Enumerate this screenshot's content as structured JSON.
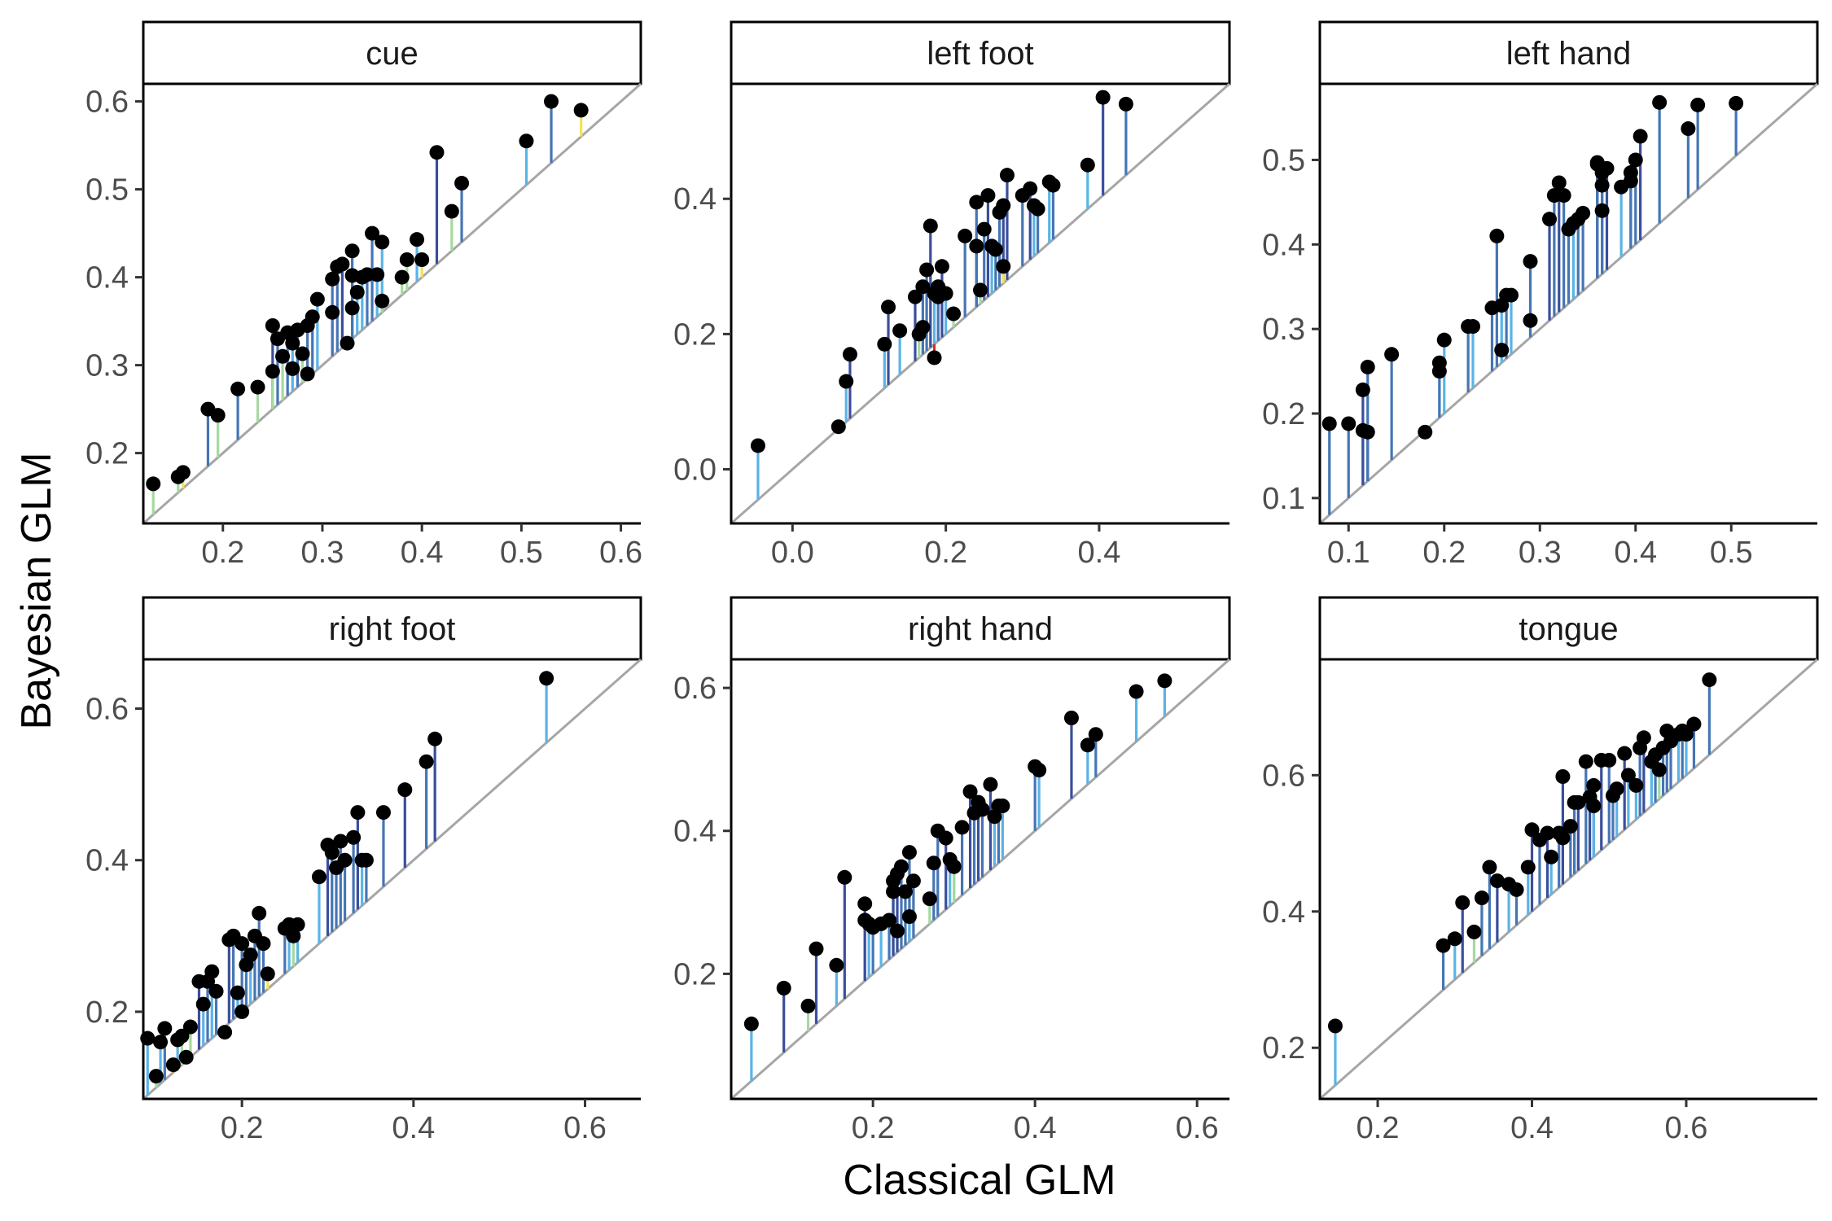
{
  "figure": {
    "xlabel": "Classical GLM",
    "ylabel": "Bayesian GLM"
  },
  "colors": {
    "point": "#000000",
    "identity_line": "#a6a6a6",
    "frame": "#000000",
    "strip_fill": "#ffffff",
    "segment_palette": [
      "#d7301f",
      "#f0a030",
      "#f2e25a",
      "#a6d9a0",
      "#5ab4e6",
      "#4575b4",
      "#3a4e9c"
    ]
  },
  "chart_data": [
    {
      "type": "scatter",
      "title": "cue",
      "xlim": [
        0.12,
        0.62
      ],
      "ylim": [
        0.12,
        0.62
      ],
      "xticks": [
        "0.2",
        "0.3",
        "0.4",
        "0.5",
        "0.6"
      ],
      "xtick_values": [
        0.2,
        0.3,
        0.4,
        0.5,
        0.6
      ],
      "yticks": [
        "0.2",
        "0.3",
        "0.4",
        "0.5",
        "0.6"
      ],
      "ytick_values": [
        0.2,
        0.3,
        0.4,
        0.5,
        0.6
      ],
      "x": [
        0.13,
        0.155,
        0.16,
        0.185,
        0.195,
        0.215,
        0.235,
        0.25,
        0.25,
        0.255,
        0.26,
        0.265,
        0.27,
        0.275,
        0.28,
        0.285,
        0.285,
        0.29,
        0.295,
        0.31,
        0.315,
        0.32,
        0.325,
        0.33,
        0.33,
        0.335,
        0.34,
        0.345,
        0.35,
        0.355,
        0.36,
        0.38,
        0.385,
        0.395,
        0.4,
        0.415,
        0.43,
        0.44,
        0.505,
        0.53,
        0.56,
        0.36,
        0.27,
        0.31,
        0.33
      ],
      "y": [
        0.165,
        0.173,
        0.178,
        0.25,
        0.243,
        0.273,
        0.275,
        0.345,
        0.293,
        0.33,
        0.31,
        0.337,
        0.296,
        0.34,
        0.313,
        0.345,
        0.29,
        0.355,
        0.375,
        0.36,
        0.412,
        0.415,
        0.325,
        0.402,
        0.365,
        0.383,
        0.4,
        0.403,
        0.45,
        0.403,
        0.44,
        0.4,
        0.42,
        0.443,
        0.42,
        0.542,
        0.475,
        0.507,
        0.555,
        0.6,
        0.59,
        0.373,
        0.325,
        0.398,
        0.43
      ]
    },
    {
      "type": "scatter",
      "title": "left foot",
      "xlim": [
        -0.08,
        0.57
      ],
      "ylim": [
        -0.08,
        0.57
      ],
      "xticks": [
        "0.0",
        "0.2",
        "0.4"
      ],
      "xtick_values": [
        0.0,
        0.2,
        0.4
      ],
      "yticks": [
        "0.0",
        "0.2",
        "0.4"
      ],
      "ytick_values": [
        0.0,
        0.2,
        0.4
      ],
      "x": [
        -0.045,
        0.06,
        0.07,
        0.075,
        0.12,
        0.125,
        0.14,
        0.16,
        0.165,
        0.17,
        0.175,
        0.18,
        0.185,
        0.185,
        0.19,
        0.195,
        0.2,
        0.21,
        0.225,
        0.24,
        0.24,
        0.245,
        0.25,
        0.255,
        0.26,
        0.265,
        0.27,
        0.275,
        0.275,
        0.28,
        0.3,
        0.31,
        0.315,
        0.32,
        0.335,
        0.34,
        0.385,
        0.405,
        0.435,
        0.19,
        0.17
      ],
      "y": [
        0.035,
        0.063,
        0.13,
        0.17,
        0.185,
        0.24,
        0.205,
        0.255,
        0.2,
        0.21,
        0.295,
        0.36,
        0.26,
        0.165,
        0.27,
        0.3,
        0.26,
        0.23,
        0.345,
        0.33,
        0.395,
        0.265,
        0.355,
        0.405,
        0.33,
        0.325,
        0.38,
        0.39,
        0.3,
        0.435,
        0.405,
        0.415,
        0.39,
        0.385,
        0.425,
        0.42,
        0.45,
        0.55,
        0.54,
        0.255,
        0.27
      ]
    },
    {
      "type": "scatter",
      "title": "left hand",
      "xlim": [
        0.07,
        0.59
      ],
      "ylim": [
        0.07,
        0.59
      ],
      "xticks": [
        "0.1",
        "0.2",
        "0.3",
        "0.4",
        "0.5"
      ],
      "xtick_values": [
        0.1,
        0.2,
        0.3,
        0.4,
        0.5
      ],
      "yticks": [
        "0.1",
        "0.2",
        "0.3",
        "0.4",
        "0.5"
      ],
      "ytick_values": [
        0.1,
        0.2,
        0.3,
        0.4,
        0.5
      ],
      "x": [
        0.08,
        0.1,
        0.115,
        0.115,
        0.12,
        0.12,
        0.145,
        0.18,
        0.195,
        0.195,
        0.2,
        0.225,
        0.23,
        0.25,
        0.255,
        0.26,
        0.26,
        0.265,
        0.27,
        0.29,
        0.29,
        0.31,
        0.315,
        0.32,
        0.325,
        0.33,
        0.335,
        0.34,
        0.345,
        0.36,
        0.36,
        0.365,
        0.365,
        0.37,
        0.385,
        0.395,
        0.4,
        0.405,
        0.425,
        0.455,
        0.465,
        0.505,
        0.365,
        0.395
      ],
      "y": [
        0.188,
        0.188,
        0.18,
        0.228,
        0.255,
        0.178,
        0.27,
        0.178,
        0.26,
        0.25,
        0.287,
        0.303,
        0.303,
        0.325,
        0.41,
        0.275,
        0.328,
        0.34,
        0.34,
        0.31,
        0.38,
        0.43,
        0.458,
        0.473,
        0.458,
        0.418,
        0.425,
        0.43,
        0.437,
        0.497,
        0.495,
        0.47,
        0.44,
        0.49,
        0.468,
        0.485,
        0.5,
        0.528,
        0.568,
        0.537,
        0.565,
        0.567,
        0.485,
        0.475
      ]
    },
    {
      "type": "scatter",
      "title": "right foot",
      "xlim": [
        0.085,
        0.665
      ],
      "ylim": [
        0.085,
        0.665
      ],
      "xticks": [
        "0.2",
        "0.4",
        "0.6"
      ],
      "xtick_values": [
        0.2,
        0.4,
        0.6
      ],
      "yticks": [
        "0.2",
        "0.4",
        "0.6"
      ],
      "ytick_values": [
        0.2,
        0.4,
        0.6
      ],
      "x": [
        0.09,
        0.1,
        0.105,
        0.11,
        0.12,
        0.125,
        0.13,
        0.135,
        0.14,
        0.15,
        0.155,
        0.16,
        0.165,
        0.17,
        0.18,
        0.185,
        0.19,
        0.195,
        0.2,
        0.205,
        0.21,
        0.215,
        0.22,
        0.225,
        0.23,
        0.25,
        0.255,
        0.265,
        0.29,
        0.3,
        0.305,
        0.31,
        0.315,
        0.32,
        0.33,
        0.335,
        0.34,
        0.345,
        0.365,
        0.39,
        0.415,
        0.425,
        0.555,
        0.2,
        0.26
      ],
      "y": [
        0.165,
        0.115,
        0.16,
        0.178,
        0.13,
        0.163,
        0.168,
        0.14,
        0.18,
        0.24,
        0.21,
        0.24,
        0.253,
        0.227,
        0.173,
        0.295,
        0.3,
        0.225,
        0.2,
        0.262,
        0.275,
        0.3,
        0.33,
        0.29,
        0.25,
        0.31,
        0.315,
        0.315,
        0.378,
        0.42,
        0.41,
        0.39,
        0.425,
        0.4,
        0.43,
        0.463,
        0.4,
        0.4,
        0.463,
        0.493,
        0.53,
        0.56,
        0.64,
        0.29,
        0.3
      ]
    },
    {
      "type": "scatter",
      "title": "right hand",
      "xlim": [
        0.025,
        0.64
      ],
      "ylim": [
        0.025,
        0.64
      ],
      "xticks": [
        "0.2",
        "0.4",
        "0.6"
      ],
      "xtick_values": [
        0.2,
        0.4,
        0.6
      ],
      "yticks": [
        "0.2",
        "0.4",
        "0.6"
      ],
      "ytick_values": [
        0.2,
        0.4,
        0.6
      ],
      "x": [
        0.05,
        0.09,
        0.12,
        0.13,
        0.155,
        0.165,
        0.19,
        0.19,
        0.195,
        0.2,
        0.21,
        0.22,
        0.225,
        0.225,
        0.23,
        0.23,
        0.235,
        0.24,
        0.245,
        0.25,
        0.27,
        0.275,
        0.28,
        0.29,
        0.295,
        0.3,
        0.31,
        0.32,
        0.325,
        0.33,
        0.335,
        0.345,
        0.35,
        0.355,
        0.36,
        0.4,
        0.405,
        0.445,
        0.465,
        0.475,
        0.525,
        0.56,
        0.3,
        0.245
      ],
      "y": [
        0.13,
        0.18,
        0.155,
        0.235,
        0.212,
        0.335,
        0.275,
        0.298,
        0.27,
        0.265,
        0.27,
        0.275,
        0.315,
        0.33,
        0.26,
        0.34,
        0.35,
        0.315,
        0.37,
        0.33,
        0.305,
        0.355,
        0.4,
        0.39,
        0.36,
        0.35,
        0.405,
        0.455,
        0.425,
        0.44,
        0.43,
        0.465,
        0.42,
        0.435,
        0.435,
        0.49,
        0.485,
        0.558,
        0.52,
        0.535,
        0.595,
        0.61,
        0.35,
        0.28
      ]
    },
    {
      "type": "scatter",
      "title": "tongue",
      "xlim": [
        0.125,
        0.77
      ],
      "ylim": [
        0.125,
        0.77
      ],
      "xticks": [
        "0.2",
        "0.4",
        "0.6"
      ],
      "xtick_values": [
        0.2,
        0.4,
        0.6
      ],
      "yticks": [
        "0.2",
        "0.4",
        "0.6"
      ],
      "ytick_values": [
        0.2,
        0.4,
        0.6
      ],
      "x": [
        0.145,
        0.285,
        0.3,
        0.31,
        0.325,
        0.335,
        0.345,
        0.355,
        0.37,
        0.38,
        0.395,
        0.4,
        0.41,
        0.42,
        0.425,
        0.435,
        0.44,
        0.45,
        0.455,
        0.46,
        0.47,
        0.475,
        0.48,
        0.49,
        0.5,
        0.505,
        0.51,
        0.52,
        0.525,
        0.535,
        0.54,
        0.545,
        0.555,
        0.56,
        0.565,
        0.57,
        0.575,
        0.58,
        0.59,
        0.595,
        0.6,
        0.61,
        0.63,
        0.44,
        0.48
      ],
      "y": [
        0.232,
        0.35,
        0.36,
        0.413,
        0.37,
        0.42,
        0.465,
        0.445,
        0.44,
        0.432,
        0.465,
        0.52,
        0.505,
        0.515,
        0.48,
        0.515,
        0.508,
        0.525,
        0.56,
        0.56,
        0.62,
        0.568,
        0.585,
        0.622,
        0.622,
        0.57,
        0.58,
        0.632,
        0.6,
        0.585,
        0.64,
        0.655,
        0.62,
        0.63,
        0.608,
        0.64,
        0.665,
        0.65,
        0.66,
        0.665,
        0.66,
        0.675,
        0.74,
        0.598,
        0.555
      ]
    }
  ]
}
